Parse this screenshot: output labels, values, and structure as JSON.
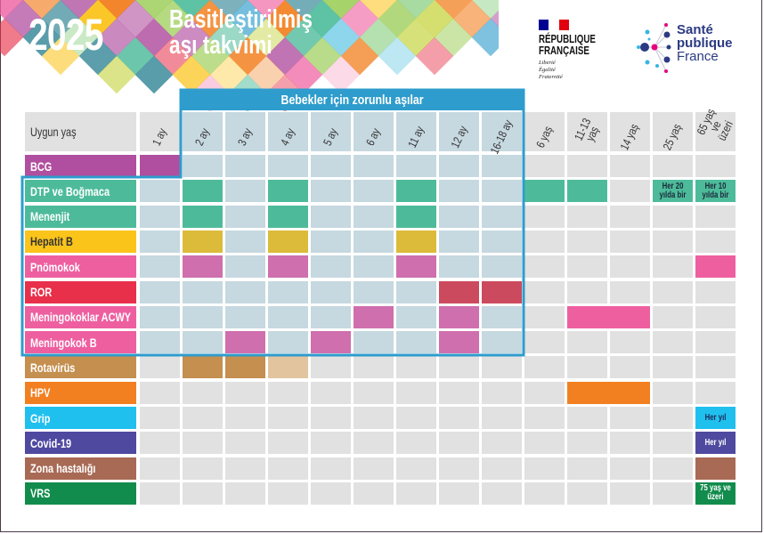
{
  "header": {
    "year": "2025",
    "title_line1": "Basitleştirilmiş",
    "title_line2": "aşı takvimi",
    "mosaic_colors": [
      "#e8304a",
      "#f28021",
      "#fbc41b",
      "#4dbb9a",
      "#2e9ccc",
      "#b04f9f",
      "#ee5fa0",
      "#8dc63f",
      "#1f7a8c",
      "#c9d64a",
      "#f7a8c8",
      "#7fd1e8",
      "#a6dba0"
    ]
  },
  "logos": {
    "republique": {
      "line1": "RÉPUBLIQUE",
      "line2": "FRANÇAISE",
      "motto": [
        "Liberté",
        "Égalité",
        "Fraternité"
      ],
      "flag_colors": [
        "#000091",
        "#ffffff",
        "#e1000f"
      ]
    },
    "sante": {
      "line1": "Santé",
      "line2": "publique",
      "line3": "France",
      "colors": [
        "#2b3a82",
        "#e6007e",
        "#34b6e4"
      ]
    }
  },
  "table": {
    "band_label": "Bebekler için zorunlu aşılar",
    "corner_label": "Uygun yaş",
    "colors": {
      "box": "#2e9ccc",
      "cell_in_box": "#c6d8e0",
      "cell_out": "#e1e1e1"
    },
    "columns": [
      "1 ay",
      "2 ay",
      "3 ay",
      "4 ay",
      "5 ay",
      "6 ay",
      "11 ay",
      "12 ay",
      "16-18 ay",
      "6 yaş",
      "11-13 yaş",
      "14 yaş",
      "25 yaş",
      "65 yaş ve üzeri"
    ],
    "rows": [
      {
        "label": "BCG",
        "color": "#b04f9f",
        "marks": [
          {
            "col": "1 ay",
            "color": "#b04f9f"
          }
        ]
      },
      {
        "label": "DTP ve Boğmaca",
        "color": "#4dbb9a",
        "marks": [
          {
            "col": "2 ay",
            "color": "#4dbb9a"
          },
          {
            "col": "4 ay",
            "color": "#4dbb9a"
          },
          {
            "col": "11 ay",
            "color": "#4dbb9a"
          },
          {
            "col": "6 yaş",
            "color": "#4dbb9a"
          },
          {
            "col": "11-13 yaş",
            "color": "#4dbb9a"
          },
          {
            "col": "25 yaş",
            "color": "#4dbb9a",
            "text": "Her 20 yılda bir"
          },
          {
            "col": "65 yaş ve üzeri",
            "color": "#4dbb9a",
            "text": "Her 10 yılda bir"
          }
        ]
      },
      {
        "label": "Menenjit",
        "color": "#4dbb9a",
        "marks": [
          {
            "col": "2 ay",
            "color": "#4dbb9a"
          },
          {
            "col": "4 ay",
            "color": "#4dbb9a"
          },
          {
            "col": "11 ay",
            "color": "#4dbb9a"
          }
        ]
      },
      {
        "label": "Hepatit B",
        "color": "#fbc41b",
        "text_color": "#333333",
        "marks": [
          {
            "col": "2 ay",
            "color": "#dcbb3a"
          },
          {
            "col": "4 ay",
            "color": "#dcbb3a"
          },
          {
            "col": "11 ay",
            "color": "#dcbb3a"
          }
        ]
      },
      {
        "label": "Pnömokok",
        "color": "#ee5fa0",
        "marks": [
          {
            "col": "2 ay",
            "color": "#cf6fae"
          },
          {
            "col": "4 ay",
            "color": "#cf6fae"
          },
          {
            "col": "11 ay",
            "color": "#cf6fae"
          },
          {
            "col": "65 yaş ve üzeri",
            "color": "#ee5fa0"
          }
        ]
      },
      {
        "label": "ROR",
        "color": "#e8304a",
        "marks": [
          {
            "col": "12 ay",
            "color": "#cc4a5e"
          },
          {
            "col": "16-18 ay",
            "color": "#cc4a5e"
          }
        ]
      },
      {
        "label": "Meningokoklar ACWY",
        "color": "#ee5fa0",
        "marks": [
          {
            "col": "6 ay",
            "color": "#cf6fae"
          },
          {
            "col": "12 ay",
            "color": "#cf6fae"
          },
          {
            "col": "11-13 yaş",
            "span": 2,
            "color": "#ee5fa0"
          }
        ]
      },
      {
        "label": "Meningokok B",
        "color": "#ee5fa0",
        "marks": [
          {
            "col": "3 ay",
            "color": "#cf6fae"
          },
          {
            "col": "5 ay",
            "color": "#cf6fae"
          },
          {
            "col": "12 ay",
            "color": "#cf6fae"
          }
        ]
      },
      {
        "label": "Rotavirüs",
        "color": "#c48f4f",
        "marks": [
          {
            "col": "2 ay",
            "color": "#c48f4f"
          },
          {
            "col": "3 ay",
            "color": "#c48f4f"
          },
          {
            "col": "4 ay",
            "color": "#e2c49e"
          }
        ]
      },
      {
        "label": "HPV",
        "color": "#f28021",
        "marks": [
          {
            "col": "11-13 yaş",
            "span": 2,
            "color": "#f28021"
          }
        ]
      },
      {
        "label": "Grip",
        "color": "#20c0ee",
        "marks": [
          {
            "col": "65 yaş ve üzeri",
            "color": "#20c0ee",
            "text": "Her yıl",
            "text_color": "#1a2a5a"
          }
        ]
      },
      {
        "label": "Covid-19",
        "color": "#4f4aa0",
        "marks": [
          {
            "col": "65 yaş ve üzeri",
            "color": "#4f4aa0",
            "text": "Her yıl",
            "text_color": "#ffffff"
          }
        ]
      },
      {
        "label": "Zona hastalığı",
        "color": "#a86a55",
        "marks": [
          {
            "col": "65 yaş ve üzeri",
            "color": "#a86a55"
          }
        ]
      },
      {
        "label": "VRS",
        "color": "#128c4c",
        "marks": [
          {
            "col": "65 yaş ve üzeri",
            "color": "#128c4c",
            "text": "75 yaş ve üzeri",
            "text_color": "#ffffff"
          }
        ]
      }
    ]
  }
}
